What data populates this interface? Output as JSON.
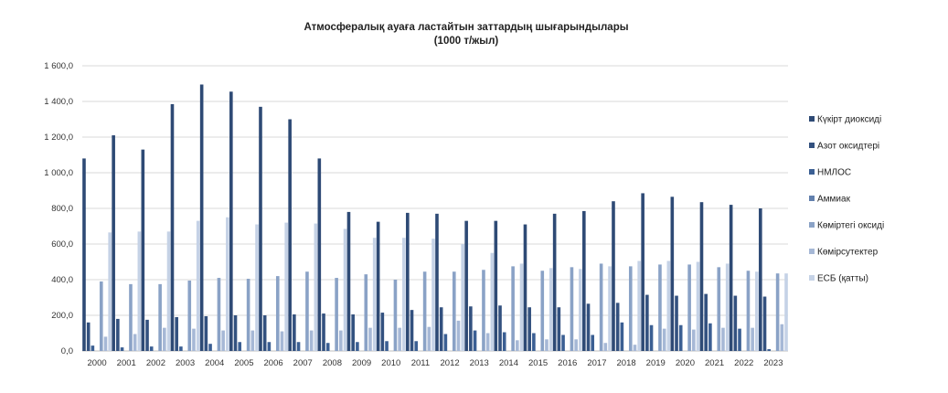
{
  "chart_data": {
    "type": "bar",
    "title": "Атмосфералық ауаға ластайтын заттардың шығарындылары",
    "subtitle": "(1000 т/жыл)",
    "xlabel": "",
    "ylabel": "",
    "ylim": [
      0,
      1600
    ],
    "yticks": [
      "0,0",
      "200,0",
      "400,0",
      "600,0",
      "800,0",
      "1 000,0",
      "1 200,0",
      "1 400,0",
      "1 600,0"
    ],
    "grid": true,
    "legend_position": "right",
    "categories": [
      "2000",
      "2001",
      "2002",
      "2003",
      "2004",
      "2005",
      "2006",
      "2007",
      "2008",
      "2009",
      "2010",
      "2011",
      "2012",
      "2013",
      "2014",
      "2015",
      "2016",
      "2017",
      "2018",
      "2019",
      "2020",
      "2021",
      "2022",
      "2023"
    ],
    "series": [
      {
        "name": "Күкірт диоксиді",
        "color": "#2e4a75",
        "values": [
          1080,
          1210,
          1130,
          1385,
          1495,
          1455,
          1370,
          1300,
          1080,
          780,
          725,
          775,
          770,
          730,
          730,
          710,
          770,
          785,
          840,
          885,
          865,
          835,
          820,
          800
        ]
      },
      {
        "name": "Азот оксидтері",
        "color": "#33517f",
        "values": [
          160,
          180,
          175,
          190,
          195,
          200,
          200,
          205,
          210,
          205,
          215,
          230,
          245,
          250,
          255,
          245,
          245,
          265,
          270,
          315,
          310,
          320,
          310,
          305
        ]
      },
      {
        "name": "НМЛОС",
        "color": "#3b5f93",
        "values": [
          30,
          20,
          25,
          25,
          40,
          50,
          50,
          50,
          45,
          50,
          55,
          55,
          95,
          115,
          105,
          100,
          90,
          90,
          160,
          145,
          145,
          155,
          125,
          10
        ]
      },
      {
        "name": "Аммиак",
        "color": "#6280ad",
        "values": [
          0,
          0,
          0,
          0,
          0,
          0,
          0,
          0,
          0,
          0,
          0,
          0,
          0,
          0,
          0,
          0,
          0,
          0,
          0,
          0,
          0,
          0,
          0,
          0
        ]
      },
      {
        "name": "Көміртегі оксиді",
        "color": "#8aa2c6",
        "values": [
          390,
          375,
          375,
          395,
          410,
          405,
          420,
          445,
          410,
          430,
          400,
          445,
          445,
          455,
          475,
          450,
          470,
          490,
          475,
          485,
          485,
          470,
          450,
          435
        ]
      },
      {
        "name": "Көмірсутектер",
        "color": "#a6b8d6",
        "values": [
          80,
          95,
          130,
          125,
          115,
          115,
          110,
          115,
          115,
          130,
          130,
          135,
          170,
          100,
          60,
          65,
          65,
          45,
          35,
          125,
          120,
          130,
          130,
          150
        ]
      },
      {
        "name": "ЕСБ (қатты)",
        "color": "#c5d2e6",
        "values": [
          665,
          670,
          670,
          730,
          750,
          710,
          720,
          715,
          685,
          635,
          635,
          630,
          600,
          550,
          490,
          465,
          460,
          475,
          505,
          505,
          500,
          490,
          445,
          435
        ]
      }
    ]
  }
}
